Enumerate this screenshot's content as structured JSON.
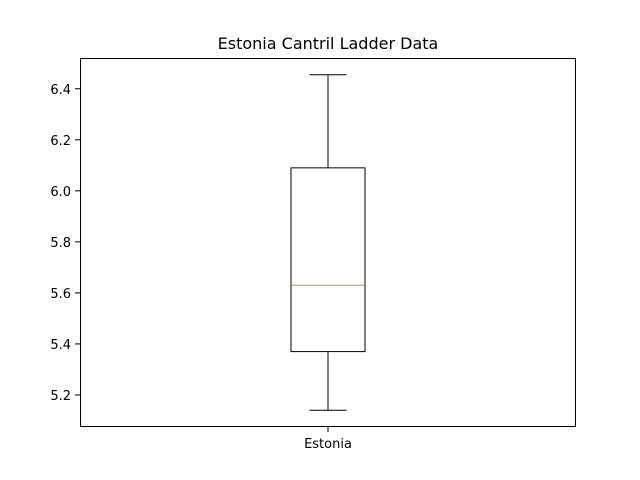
{
  "chart_data": {
    "type": "box",
    "title": "Estonia Cantril Ladder Data",
    "categories": [
      "Estonia"
    ],
    "boxes": [
      {
        "name": "Estonia",
        "whisker_low": 5.14,
        "q1": 5.37,
        "median": 5.63,
        "q3": 6.09,
        "whisker_high": 6.455
      }
    ],
    "yticks": [
      5.2,
      5.4,
      5.6,
      5.8,
      6.0,
      6.2,
      6.4
    ],
    "ytick_labels": [
      "5.2",
      "5.4",
      "5.6",
      "5.8",
      "6.0",
      "6.2",
      "6.4"
    ],
    "ylim": [
      5.0745,
      6.5205
    ],
    "grid": false,
    "colors": {
      "box": "#000000",
      "median": "#ff7f0e",
      "whisker": "#000000",
      "axes": "#000000"
    }
  }
}
